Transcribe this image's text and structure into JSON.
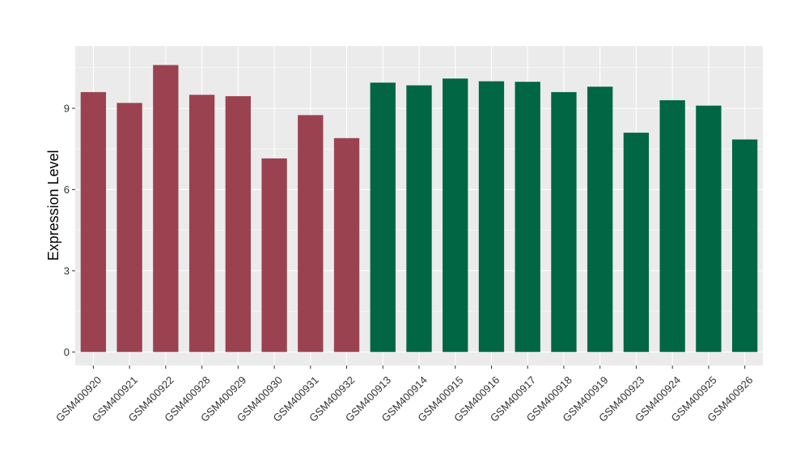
{
  "chart_data": {
    "type": "bar",
    "title": "",
    "xlabel": "",
    "ylabel": "Expression Level",
    "ylim": [
      -0.5,
      11.3
    ],
    "yticks": [
      0,
      3,
      6,
      9
    ],
    "grid": true,
    "legend": "none",
    "categories": [
      "GSM400920",
      "GSM400921",
      "GSM400922",
      "GSM400928",
      "GSM400929",
      "GSM400930",
      "GSM400931",
      "GSM400932",
      "GSM400913",
      "GSM400914",
      "GSM400915",
      "GSM400916",
      "GSM400917",
      "GSM400918",
      "GSM400919",
      "GSM400923",
      "GSM400924",
      "GSM400925",
      "GSM400926"
    ],
    "values": [
      9.6,
      9.2,
      10.6,
      9.5,
      9.45,
      7.15,
      8.75,
      7.9,
      9.95,
      9.85,
      10.1,
      10.0,
      9.98,
      9.6,
      9.8,
      8.1,
      9.3,
      9.1,
      7.85
    ],
    "groups": [
      0,
      0,
      0,
      0,
      0,
      0,
      0,
      0,
      1,
      1,
      1,
      1,
      1,
      1,
      1,
      1,
      1,
      1,
      1
    ],
    "group_colors": [
      "#9B4250",
      "#006644"
    ],
    "panel_background": "#EBEBEB",
    "grid_color": "#FFFFFF"
  }
}
